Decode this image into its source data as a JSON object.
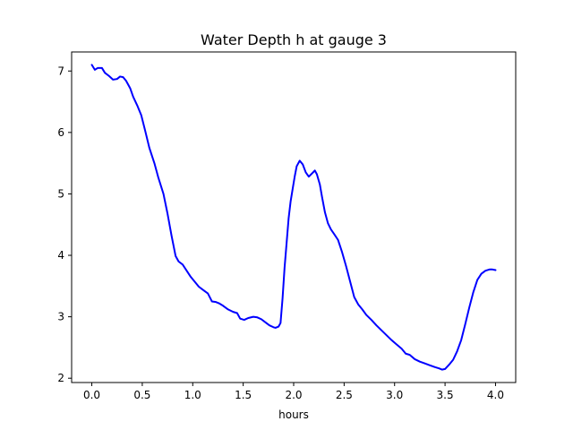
{
  "chart_data": {
    "type": "line",
    "title": "Water Depth h at gauge 3",
    "xlabel": "hours",
    "ylabel": "",
    "xlim": [
      -0.2,
      4.2
    ],
    "ylim": [
      1.93,
      7.31
    ],
    "x_ticks": [
      0.0,
      0.5,
      1.0,
      1.5,
      2.0,
      2.5,
      3.0,
      3.5,
      4.0
    ],
    "x_tick_labels": [
      "0.0",
      "0.5",
      "1.0",
      "1.5",
      "2.0",
      "2.5",
      "3.0",
      "3.5",
      "4.0"
    ],
    "y_ticks": [
      2,
      3,
      4,
      5,
      6,
      7
    ],
    "y_tick_labels": [
      "2",
      "3",
      "4",
      "5",
      "6",
      "7"
    ],
    "grid": false,
    "legend": "none",
    "series": [
      {
        "color": "#0000ff",
        "x": [
          0.0,
          0.03,
          0.06,
          0.1,
          0.13,
          0.17,
          0.21,
          0.25,
          0.28,
          0.31,
          0.34,
          0.38,
          0.41,
          0.45,
          0.49,
          0.53,
          0.57,
          0.62,
          0.66,
          0.71,
          0.75,
          0.79,
          0.83,
          0.86,
          0.9,
          0.94,
          0.98,
          1.02,
          1.06,
          1.1,
          1.15,
          1.19,
          1.23,
          1.26,
          1.3,
          1.35,
          1.4,
          1.44,
          1.47,
          1.51,
          1.55,
          1.6,
          1.64,
          1.68,
          1.72,
          1.76,
          1.8,
          1.82,
          1.85,
          1.87,
          1.89,
          1.91,
          1.93,
          1.95,
          1.97,
          1.99,
          2.01,
          2.03,
          2.06,
          2.09,
          2.12,
          2.15,
          2.18,
          2.21,
          2.23,
          2.26,
          2.28,
          2.31,
          2.34,
          2.37,
          2.4,
          2.44,
          2.48,
          2.52,
          2.56,
          2.6,
          2.64,
          2.68,
          2.72,
          2.77,
          2.82,
          2.87,
          2.92,
          2.97,
          3.02,
          3.07,
          3.11,
          3.15,
          3.2,
          3.25,
          3.3,
          3.35,
          3.4,
          3.44,
          3.47,
          3.5,
          3.54,
          3.58,
          3.62,
          3.66,
          3.7,
          3.74,
          3.78,
          3.82,
          3.86,
          3.9,
          3.94,
          3.97,
          4.0
        ],
        "y": [
          7.1,
          7.02,
          7.05,
          7.05,
          6.97,
          6.92,
          6.86,
          6.87,
          6.91,
          6.9,
          6.84,
          6.72,
          6.58,
          6.44,
          6.28,
          6.02,
          5.75,
          5.5,
          5.26,
          5.0,
          4.68,
          4.32,
          3.99,
          3.9,
          3.85,
          3.75,
          3.65,
          3.57,
          3.49,
          3.44,
          3.38,
          3.25,
          3.24,
          3.22,
          3.18,
          3.12,
          3.08,
          3.06,
          2.97,
          2.95,
          2.98,
          3.0,
          2.99,
          2.96,
          2.91,
          2.86,
          2.83,
          2.82,
          2.84,
          2.9,
          3.3,
          3.8,
          4.2,
          4.6,
          4.88,
          5.08,
          5.28,
          5.45,
          5.54,
          5.48,
          5.35,
          5.28,
          5.33,
          5.38,
          5.32,
          5.15,
          4.96,
          4.7,
          4.52,
          4.42,
          4.35,
          4.25,
          4.05,
          3.82,
          3.57,
          3.32,
          3.2,
          3.12,
          3.03,
          2.95,
          2.86,
          2.78,
          2.7,
          2.62,
          2.55,
          2.48,
          2.4,
          2.38,
          2.31,
          2.27,
          2.24,
          2.21,
          2.18,
          2.16,
          2.14,
          2.15,
          2.22,
          2.3,
          2.44,
          2.62,
          2.88,
          3.15,
          3.4,
          3.6,
          3.7,
          3.75,
          3.77,
          3.77,
          3.76
        ]
      }
    ]
  }
}
